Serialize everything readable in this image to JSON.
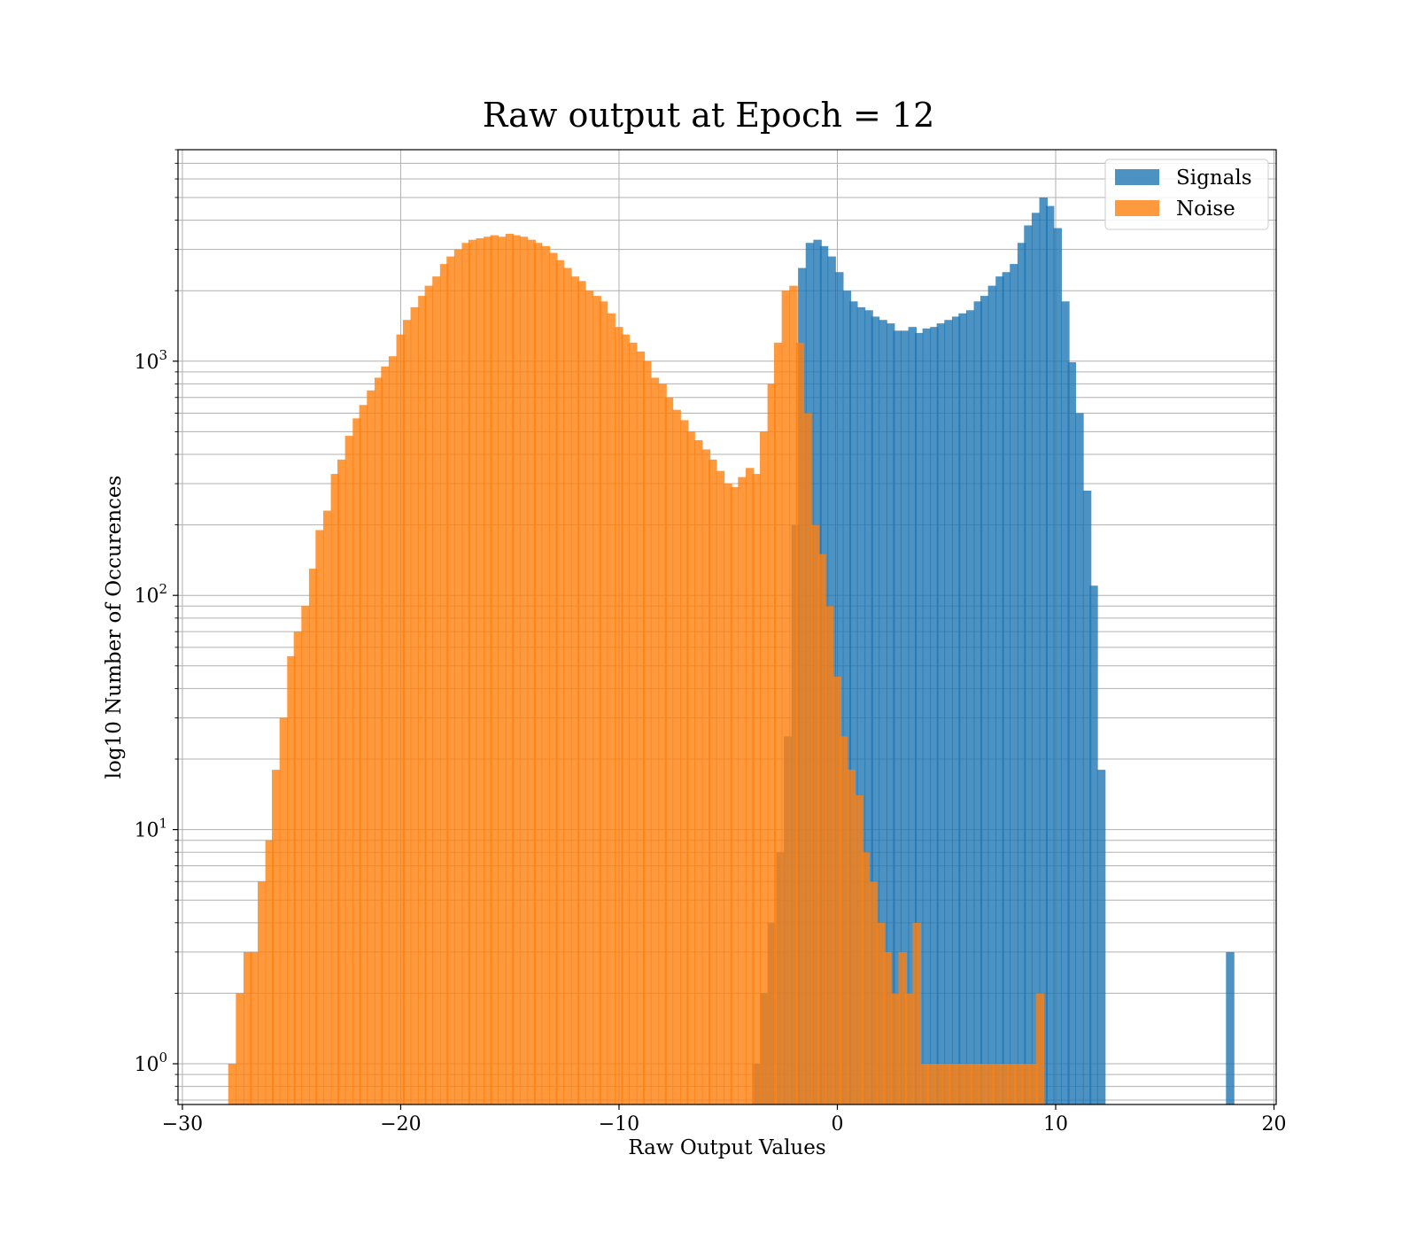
{
  "chart_data": {
    "type": "histogram",
    "title": "Raw output at Epoch = 12",
    "xlabel": "Raw Output Values",
    "ylabel": "log10 Number of Occurences",
    "x_scale": "linear",
    "y_scale": "log",
    "xlim": [
      -30.2,
      20.1
    ],
    "ylim": [
      0.67,
      8000
    ],
    "x_ticks": [
      {
        "value": -30,
        "label": "−30"
      },
      {
        "value": -20,
        "label": "−20"
      },
      {
        "value": -10,
        "label": "−10"
      },
      {
        "value": 0,
        "label": "0"
      },
      {
        "value": 10,
        "label": "10"
      },
      {
        "value": 20,
        "label": "20"
      }
    ],
    "y_ticks": [
      {
        "value": 1,
        "base": "10",
        "exp": "0"
      },
      {
        "value": 10,
        "base": "10",
        "exp": "1"
      },
      {
        "value": 100,
        "base": "10",
        "exp": "2"
      },
      {
        "value": 1000,
        "base": "10",
        "exp": "3"
      }
    ],
    "grid": true,
    "legend_position": "top-right",
    "colors": {
      "Signals": "#1f77b4",
      "Noise": "#ff7f0e"
    },
    "series": [
      {
        "name": "Signals",
        "bin_width": 0.36,
        "bins": [
          [
            -3.9,
            1
          ],
          [
            -3.55,
            2
          ],
          [
            -3.2,
            4
          ],
          [
            -2.8,
            8
          ],
          [
            -2.45,
            25
          ],
          [
            -2.1,
            200
          ],
          [
            -1.8,
            2500
          ],
          [
            -1.45,
            3200
          ],
          [
            -1.1,
            3300
          ],
          [
            -0.8,
            3100
          ],
          [
            -0.45,
            2800
          ],
          [
            -0.1,
            2400
          ],
          [
            0.25,
            2000
          ],
          [
            0.55,
            1800
          ],
          [
            0.9,
            1700
          ],
          [
            1.25,
            1650
          ],
          [
            1.55,
            1550
          ],
          [
            1.9,
            1500
          ],
          [
            2.25,
            1450
          ],
          [
            2.55,
            1350
          ],
          [
            2.9,
            1350
          ],
          [
            3.25,
            1400
          ],
          [
            3.55,
            1320
          ],
          [
            3.9,
            1380
          ],
          [
            4.25,
            1400
          ],
          [
            4.55,
            1450
          ],
          [
            4.9,
            1500
          ],
          [
            5.25,
            1550
          ],
          [
            5.55,
            1600
          ],
          [
            5.9,
            1650
          ],
          [
            6.25,
            1800
          ],
          [
            6.55,
            1900
          ],
          [
            6.9,
            2100
          ],
          [
            7.25,
            2300
          ],
          [
            7.55,
            2400
          ],
          [
            7.9,
            2600
          ],
          [
            8.25,
            3200
          ],
          [
            8.55,
            3800
          ],
          [
            8.9,
            4300
          ],
          [
            9.25,
            5000
          ],
          [
            9.55,
            4600
          ],
          [
            9.9,
            3700
          ],
          [
            10.25,
            1800
          ],
          [
            10.55,
            990
          ],
          [
            10.9,
            600
          ],
          [
            11.25,
            280
          ],
          [
            11.55,
            110
          ],
          [
            11.9,
            18
          ],
          [
            17.8,
            3
          ]
        ]
      },
      {
        "name": "Noise",
        "bin_width": 0.36,
        "bins": [
          [
            -27.9,
            1
          ],
          [
            -27.55,
            2
          ],
          [
            -27.2,
            3
          ],
          [
            -26.9,
            3
          ],
          [
            -26.55,
            6
          ],
          [
            -26.2,
            9
          ],
          [
            -25.9,
            18
          ],
          [
            -25.55,
            30
          ],
          [
            -25.2,
            55
          ],
          [
            -24.9,
            70
          ],
          [
            -24.55,
            90
          ],
          [
            -24.2,
            130
          ],
          [
            -23.9,
            190
          ],
          [
            -23.55,
            230
          ],
          [
            -23.2,
            330
          ],
          [
            -22.9,
            380
          ],
          [
            -22.55,
            480
          ],
          [
            -22.2,
            570
          ],
          [
            -21.9,
            650
          ],
          [
            -21.55,
            750
          ],
          [
            -21.2,
            850
          ],
          [
            -20.9,
            950
          ],
          [
            -20.55,
            1050
          ],
          [
            -20.2,
            1300
          ],
          [
            -19.9,
            1500
          ],
          [
            -19.55,
            1700
          ],
          [
            -19.2,
            1900
          ],
          [
            -18.9,
            2100
          ],
          [
            -18.55,
            2300
          ],
          [
            -18.2,
            2600
          ],
          [
            -17.9,
            2800
          ],
          [
            -17.55,
            3000
          ],
          [
            -17.2,
            3200
          ],
          [
            -16.9,
            3300
          ],
          [
            -16.55,
            3350
          ],
          [
            -16.2,
            3400
          ],
          [
            -15.9,
            3450
          ],
          [
            -15.55,
            3400
          ],
          [
            -15.2,
            3500
          ],
          [
            -14.9,
            3450
          ],
          [
            -14.55,
            3400
          ],
          [
            -14.2,
            3300
          ],
          [
            -13.9,
            3200
          ],
          [
            -13.55,
            3100
          ],
          [
            -13.2,
            2900
          ],
          [
            -12.9,
            2700
          ],
          [
            -12.55,
            2500
          ],
          [
            -12.2,
            2300
          ],
          [
            -11.9,
            2200
          ],
          [
            -11.55,
            2000
          ],
          [
            -11.2,
            1900
          ],
          [
            -10.9,
            1800
          ],
          [
            -10.55,
            1600
          ],
          [
            -10.2,
            1400
          ],
          [
            -9.9,
            1300
          ],
          [
            -9.55,
            1200
          ],
          [
            -9.2,
            1100
          ],
          [
            -8.9,
            1000
          ],
          [
            -8.55,
            850
          ],
          [
            -8.2,
            800
          ],
          [
            -7.9,
            700
          ],
          [
            -7.55,
            620
          ],
          [
            -7.2,
            560
          ],
          [
            -6.9,
            500
          ],
          [
            -6.55,
            460
          ],
          [
            -6.2,
            420
          ],
          [
            -5.9,
            380
          ],
          [
            -5.55,
            340
          ],
          [
            -5.2,
            300
          ],
          [
            -4.9,
            290
          ],
          [
            -4.55,
            320
          ],
          [
            -4.2,
            350
          ],
          [
            -3.9,
            330
          ],
          [
            -3.55,
            500
          ],
          [
            -3.2,
            800
          ],
          [
            -2.9,
            1200
          ],
          [
            -2.55,
            2000
          ],
          [
            -2.2,
            2100
          ],
          [
            -1.9,
            1200
          ],
          [
            -1.55,
            600
          ],
          [
            -1.2,
            200
          ],
          [
            -0.9,
            150
          ],
          [
            -0.55,
            90
          ],
          [
            -0.2,
            45
          ],
          [
            0.1,
            25
          ],
          [
            0.45,
            18
          ],
          [
            0.8,
            14
          ],
          [
            1.1,
            8
          ],
          [
            1.45,
            6
          ],
          [
            1.8,
            4
          ],
          [
            2.1,
            3
          ],
          [
            2.45,
            2
          ],
          [
            2.8,
            3
          ],
          [
            3.1,
            2
          ],
          [
            3.45,
            4
          ],
          [
            3.8,
            1
          ],
          [
            4.1,
            1
          ],
          [
            4.45,
            1
          ],
          [
            4.8,
            1
          ],
          [
            5.1,
            1
          ],
          [
            5.45,
            1
          ],
          [
            5.8,
            1
          ],
          [
            6.1,
            1
          ],
          [
            6.45,
            1
          ],
          [
            6.8,
            1
          ],
          [
            7.1,
            1
          ],
          [
            7.45,
            1
          ],
          [
            7.8,
            1
          ],
          [
            8.1,
            1
          ],
          [
            8.45,
            1
          ],
          [
            8.8,
            1
          ],
          [
            9.1,
            2
          ]
        ]
      }
    ]
  }
}
